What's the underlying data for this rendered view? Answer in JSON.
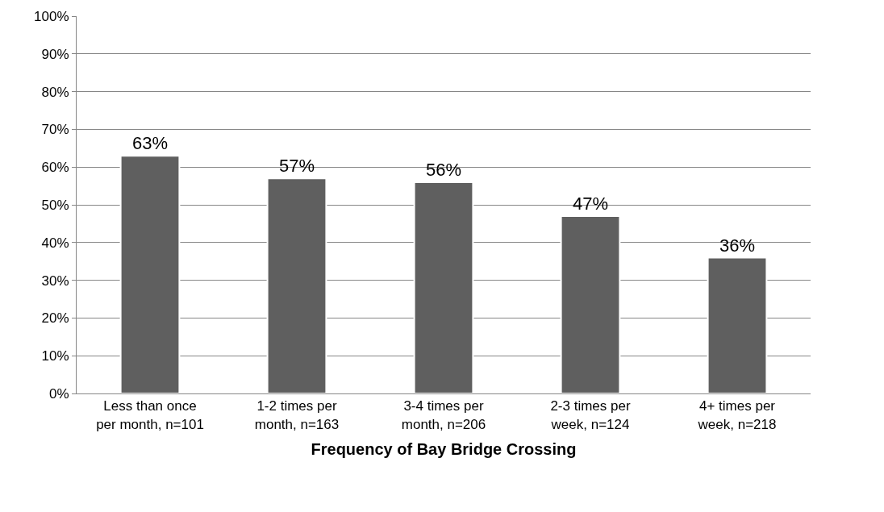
{
  "chart_data": {
    "type": "bar",
    "xlabel": "Frequency of Bay Bridge Crossing",
    "categories": [
      "Less than once\nper month, n=101",
      "1-2 times per\nmonth, n=163",
      "3-4 times per\nmonth, n=206",
      "2-3 times per\nweek, n=124",
      "4+ times per\nweek, n=218"
    ],
    "values": [
      63,
      57,
      56,
      47,
      36
    ],
    "value_labels": [
      "63%",
      "57%",
      "56%",
      "47%",
      "36%"
    ],
    "color": "#5f5f5f",
    "ylim": [
      0,
      100
    ],
    "yticks": [
      {
        "value": 0,
        "label": "0%"
      },
      {
        "value": 10,
        "label": "10%"
      },
      {
        "value": 20,
        "label": "20%"
      },
      {
        "value": 30,
        "label": "30%"
      },
      {
        "value": 40,
        "label": "40%"
      },
      {
        "value": 50,
        "label": "50%"
      },
      {
        "value": 60,
        "label": "60%"
      },
      {
        "value": 70,
        "label": "70%"
      },
      {
        "value": 80,
        "label": "80%"
      },
      {
        "value": 90,
        "label": "90%"
      },
      {
        "value": 100,
        "label": "100%"
      }
    ],
    "grid": "y",
    "legend": false
  }
}
